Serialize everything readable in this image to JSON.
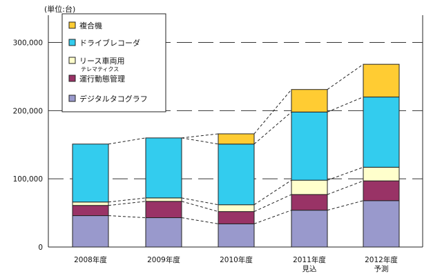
{
  "chart_data": {
    "type": "bar",
    "stacked": true,
    "unit_label": "(単位:台)",
    "categories": [
      [
        "2008年度"
      ],
      [
        "2009年度"
      ],
      [
        "2010年度"
      ],
      [
        "2011年度",
        "見込"
      ],
      [
        "2012年度",
        "予測"
      ]
    ],
    "series": [
      {
        "name": "デジタルタコグラフ",
        "color": "#9999cc",
        "values": [
          46000,
          43000,
          34000,
          54000,
          68000
        ]
      },
      {
        "name": "運行動態管理",
        "color": "#993366",
        "values": [
          15000,
          24000,
          18000,
          23000,
          29000
        ]
      },
      {
        "name": "リース車両用",
        "name_sub": "テレマティクス",
        "color": "#ffffcc",
        "values": [
          5000,
          5000,
          10000,
          21000,
          20000
        ]
      },
      {
        "name": "ドライブレコーダ",
        "color": "#33ccee",
        "values": [
          85000,
          88000,
          89000,
          100000,
          103000
        ]
      },
      {
        "name": "複合機",
        "color": "#ffcc33",
        "values": [
          0,
          0,
          15000,
          33000,
          48000
        ]
      }
    ],
    "legend_order": [
      4,
      3,
      2,
      1,
      0
    ],
    "ylim": [
      0,
      300000
    ],
    "yticks": [
      0,
      100000,
      200000,
      300000
    ],
    "ytick_labels": [
      "0",
      "100,000",
      "200,000",
      "300,000"
    ],
    "gridlines": "dashed",
    "legend_position": "top-left",
    "xlabel": "",
    "ylabel": ""
  }
}
